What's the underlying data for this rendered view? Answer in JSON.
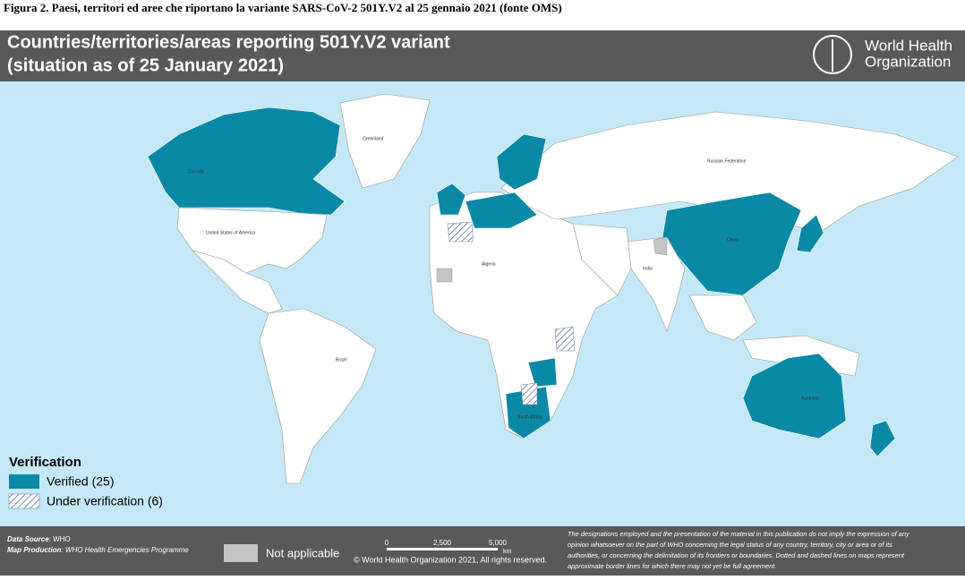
{
  "caption": "Figura 2. Paesi, territori ed aree che riportano la variante SARS-CoV-2 501Y.V2 al 25 gennaio 2021 (fonte OMS)",
  "header": {
    "title_line1": "Countries/territories/areas reporting 501Y.V2 variant",
    "title_line2": "(situation as of 25 January 2021)",
    "logo_line1": "World Health",
    "logo_line2": "Organization"
  },
  "map_labels": [
    "Canada",
    "Greenland",
    "United States of America",
    "Brazil",
    "China",
    "India",
    "Australia",
    "Russian Federation",
    "Algeria",
    "South Africa"
  ],
  "legend": {
    "title": "Verification",
    "items": [
      "Verified (25)",
      "Under verification (6)"
    ]
  },
  "footer": {
    "source_label": "Data Source",
    "source": ": WHO",
    "production_label": "Map Production",
    "production": ": WHO Health Emergencies Programme",
    "not_applicable": "Not applicable",
    "scale": [
      "0",
      "2,500",
      "5,000",
      "km"
    ],
    "copyright": "© World Health Organization 2021, All rights reserved.",
    "disclaimer": [
      "The designations employed and the presentation of the material in this publication do not imply the expression of any",
      "opinion whatsoever on the part of WHO concerning the legal status of any country, territory, city or area or of its",
      "authorities, or concerning the delimitation of its frontiers or boundaries. Dotted and dashed lines on maps represent",
      "approximate border lines for which there may not yet be full agreement."
    ]
  }
}
